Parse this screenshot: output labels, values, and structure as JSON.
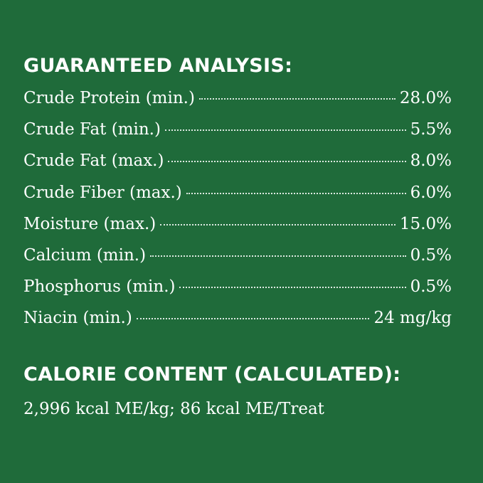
{
  "analysis": {
    "heading": "GUARANTEED ANALYSIS:",
    "rows": [
      {
        "label": "Crude Protein (min.)",
        "value": "28.0%"
      },
      {
        "label": "Crude Fat (min.)",
        "value": "5.5%"
      },
      {
        "label": "Crude Fat (max.)",
        "value": "8.0%"
      },
      {
        "label": "Crude Fiber (max.)",
        "value": "6.0%"
      },
      {
        "label": "Moisture (max.)",
        "value": "15.0%"
      },
      {
        "label": "Calcium (min.)",
        "value": "0.5%"
      },
      {
        "label": "Phosphorus (min.)",
        "value": "0.5%"
      },
      {
        "label": "Niacin (min.)",
        "value": "24 mg/kg"
      }
    ]
  },
  "calorie": {
    "heading": "CALORIE CONTENT (CALCULATED):",
    "text": "2,996 kcal ME/kg; 86 kcal ME/Treat"
  },
  "colors": {
    "background": "#1f6b3a",
    "text": "#ffffff"
  }
}
